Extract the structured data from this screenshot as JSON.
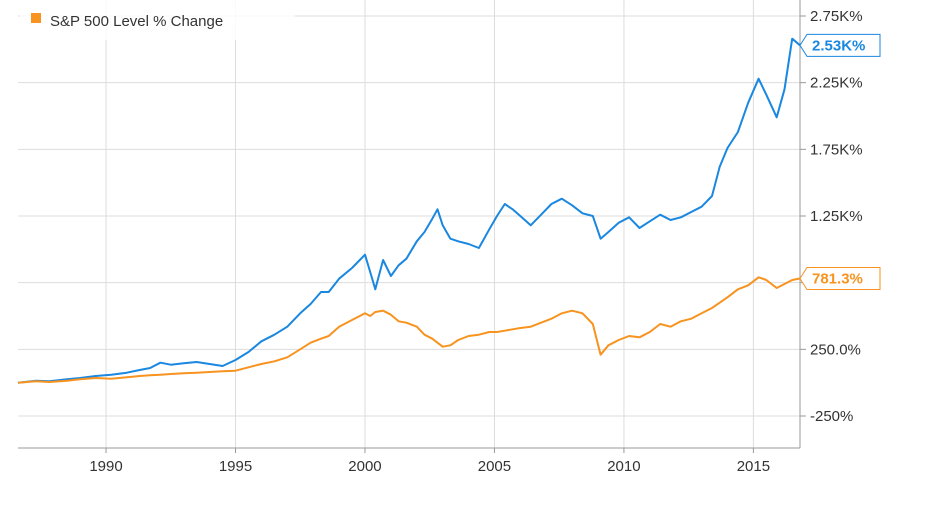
{
  "chart_data": {
    "type": "line",
    "title": "",
    "xlabel": "",
    "ylabel": "",
    "xlim": [
      1986.6,
      2016.8
    ],
    "ylim": [
      -490,
      2870
    ],
    "x_ticks": [
      1990,
      1995,
      2000,
      2005,
      2010,
      2015
    ],
    "x_tick_labels": [
      "1990",
      "1995",
      "2000",
      "2005",
      "2010",
      "2015"
    ],
    "y_ticks": [
      -250,
      250,
      750,
      1250,
      1750,
      2250,
      2750
    ],
    "y_tick_labels": [
      "-250%",
      "250.0%",
      "",
      "1.25K%",
      "1.75K%",
      "2.25K%",
      "2.75K%"
    ],
    "y_tick_label_map": {
      "-250": "-250%",
      "250": "250.0%",
      "750": "",
      "1250": "1.25K%",
      "1750": "1.75K%",
      "2250": "2.25K%",
      "2750": "2.75K%"
    },
    "grid": true,
    "legend_position": "top-left",
    "series": [
      {
        "name": "",
        "color": "#1a87e0",
        "end_label": "2.53K%",
        "points": [
          [
            1986.6,
            0
          ],
          [
            1987.3,
            15
          ],
          [
            1987.8,
            10
          ],
          [
            1988.5,
            25
          ],
          [
            1989.0,
            35
          ],
          [
            1989.6,
            50
          ],
          [
            1990.2,
            60
          ],
          [
            1990.8,
            75
          ],
          [
            1991.3,
            95
          ],
          [
            1991.7,
            110
          ],
          [
            1992.1,
            150
          ],
          [
            1992.5,
            135
          ],
          [
            1993.0,
            145
          ],
          [
            1993.5,
            155
          ],
          [
            1994.0,
            140
          ],
          [
            1994.5,
            125
          ],
          [
            1995.0,
            170
          ],
          [
            1995.5,
            230
          ],
          [
            1996.0,
            310
          ],
          [
            1996.5,
            360
          ],
          [
            1997.0,
            420
          ],
          [
            1997.5,
            520
          ],
          [
            1997.9,
            590
          ],
          [
            1998.3,
            680
          ],
          [
            1998.6,
            680
          ],
          [
            1999.0,
            780
          ],
          [
            1999.5,
            860
          ],
          [
            1999.8,
            920
          ],
          [
            2000.0,
            960
          ],
          [
            2000.2,
            830
          ],
          [
            2000.4,
            700
          ],
          [
            2000.7,
            920
          ],
          [
            2001.0,
            800
          ],
          [
            2001.3,
            880
          ],
          [
            2001.6,
            930
          ],
          [
            2002.0,
            1060
          ],
          [
            2002.3,
            1130
          ],
          [
            2002.6,
            1230
          ],
          [
            2002.8,
            1300
          ],
          [
            2003.0,
            1180
          ],
          [
            2003.3,
            1080
          ],
          [
            2003.6,
            1060
          ],
          [
            2004.0,
            1040
          ],
          [
            2004.4,
            1010
          ],
          [
            2004.8,
            1150
          ],
          [
            2005.1,
            1250
          ],
          [
            2005.4,
            1340
          ],
          [
            2005.7,
            1300
          ],
          [
            2006.0,
            1250
          ],
          [
            2006.4,
            1180
          ],
          [
            2006.8,
            1260
          ],
          [
            2007.2,
            1340
          ],
          [
            2007.6,
            1380
          ],
          [
            2008.0,
            1330
          ],
          [
            2008.4,
            1270
          ],
          [
            2008.8,
            1250
          ],
          [
            2009.1,
            1080
          ],
          [
            2009.4,
            1130
          ],
          [
            2009.8,
            1200
          ],
          [
            2010.2,
            1240
          ],
          [
            2010.6,
            1160
          ],
          [
            2011.0,
            1210
          ],
          [
            2011.4,
            1260
          ],
          [
            2011.8,
            1220
          ],
          [
            2012.2,
            1240
          ],
          [
            2012.6,
            1280
          ],
          [
            2013.0,
            1320
          ],
          [
            2013.4,
            1400
          ],
          [
            2013.7,
            1620
          ],
          [
            2014.0,
            1760
          ],
          [
            2014.4,
            1880
          ],
          [
            2014.8,
            2100
          ],
          [
            2015.2,
            2280
          ],
          [
            2015.5,
            2160
          ],
          [
            2015.9,
            1990
          ],
          [
            2016.2,
            2200
          ],
          [
            2016.5,
            2580
          ],
          [
            2016.8,
            2530
          ]
        ]
      },
      {
        "name": "S&P 500 Level % Change",
        "color": "#f7931e",
        "end_label": "781.3%",
        "points": [
          [
            1986.6,
            0
          ],
          [
            1987.3,
            10
          ],
          [
            1987.8,
            5
          ],
          [
            1988.5,
            15
          ],
          [
            1989.0,
            25
          ],
          [
            1989.6,
            35
          ],
          [
            1990.2,
            30
          ],
          [
            1990.8,
            40
          ],
          [
            1991.3,
            50
          ],
          [
            1991.7,
            55
          ],
          [
            1992.1,
            60
          ],
          [
            1992.5,
            65
          ],
          [
            1993.0,
            70
          ],
          [
            1993.5,
            75
          ],
          [
            1994.0,
            80
          ],
          [
            1994.5,
            85
          ],
          [
            1995.0,
            90
          ],
          [
            1995.5,
            115
          ],
          [
            1996.0,
            140
          ],
          [
            1996.5,
            160
          ],
          [
            1997.0,
            190
          ],
          [
            1997.5,
            250
          ],
          [
            1997.9,
            300
          ],
          [
            1998.3,
            330
          ],
          [
            1998.6,
            350
          ],
          [
            1999.0,
            420
          ],
          [
            1999.5,
            470
          ],
          [
            1999.8,
            500
          ],
          [
            2000.0,
            520
          ],
          [
            2000.2,
            500
          ],
          [
            2000.4,
            530
          ],
          [
            2000.7,
            540
          ],
          [
            2001.0,
            510
          ],
          [
            2001.3,
            460
          ],
          [
            2001.6,
            450
          ],
          [
            2002.0,
            420
          ],
          [
            2002.3,
            360
          ],
          [
            2002.6,
            330
          ],
          [
            2002.8,
            300
          ],
          [
            2003.0,
            270
          ],
          [
            2003.3,
            280
          ],
          [
            2003.6,
            320
          ],
          [
            2004.0,
            350
          ],
          [
            2004.4,
            360
          ],
          [
            2004.8,
            380
          ],
          [
            2005.1,
            380
          ],
          [
            2005.4,
            390
          ],
          [
            2005.7,
            400
          ],
          [
            2006.0,
            410
          ],
          [
            2006.4,
            420
          ],
          [
            2006.8,
            450
          ],
          [
            2007.2,
            480
          ],
          [
            2007.6,
            520
          ],
          [
            2008.0,
            540
          ],
          [
            2008.4,
            520
          ],
          [
            2008.8,
            440
          ],
          [
            2009.1,
            210
          ],
          [
            2009.4,
            280
          ],
          [
            2009.8,
            320
          ],
          [
            2010.2,
            350
          ],
          [
            2010.6,
            340
          ],
          [
            2011.0,
            380
          ],
          [
            2011.4,
            440
          ],
          [
            2011.8,
            420
          ],
          [
            2012.2,
            460
          ],
          [
            2012.6,
            480
          ],
          [
            2013.0,
            520
          ],
          [
            2013.4,
            560
          ],
          [
            2013.7,
            600
          ],
          [
            2014.0,
            640
          ],
          [
            2014.4,
            700
          ],
          [
            2014.8,
            730
          ],
          [
            2015.2,
            790
          ],
          [
            2015.5,
            770
          ],
          [
            2015.9,
            710
          ],
          [
            2016.2,
            740
          ],
          [
            2016.5,
            770
          ],
          [
            2016.8,
            781.3
          ]
        ]
      }
    ]
  }
}
